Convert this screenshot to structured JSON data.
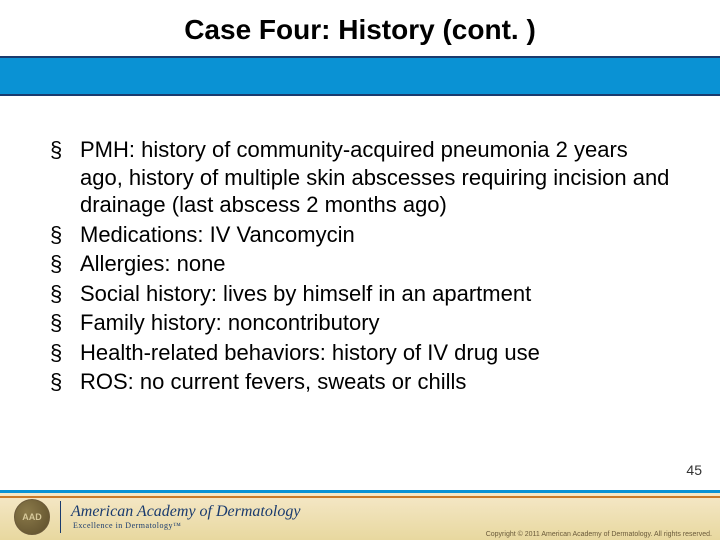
{
  "title": "Case Four: History (cont. )",
  "bullets": [
    "PMH: history of community-acquired pneumonia 2 years ago, history of multiple skin abscesses requiring incision and drainage (last abscess 2 months ago)",
    "Medications: IV Vancomycin",
    "Allergies: none",
    "Social history: lives by himself in an apartment",
    "Family history: noncontributory",
    "Health-related behaviors: history of IV drug use",
    "ROS: no current fevers, sweats or chills"
  ],
  "slide_number": "45",
  "footer": {
    "logo_badge": "AAD",
    "org_name": "American Academy of Dermatology",
    "tagline": "Excellence in Dermatology™",
    "copyright": "Copyright © 2011 American Academy of Dermatology. All rights reserved."
  },
  "colors": {
    "title_text": "#000000",
    "blue_band": "#0a92d4",
    "blue_band_border": "#1a3b6e",
    "body_text": "#000000",
    "footer_bg_top": "#f5e8c8",
    "footer_bg_bottom": "#e8d89f",
    "footer_orange": "#c97a2a",
    "logo_text": "#1a3b6e"
  },
  "typography": {
    "title_fontsize": 28,
    "title_weight": "bold",
    "bullet_fontsize": 22,
    "slide_number_fontsize": 14
  }
}
